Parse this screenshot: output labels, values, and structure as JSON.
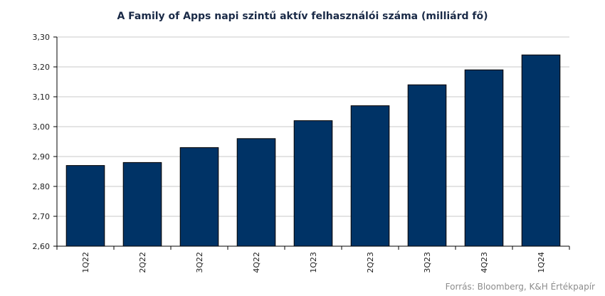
{
  "chart_data": {
    "type": "bar",
    "title": "A Family of Apps napi szintű aktív felhasználói száma (milliárd fő)",
    "categories": [
      "1Q22",
      "2Q22",
      "3Q22",
      "4Q22",
      "1Q23",
      "2Q23",
      "3Q23",
      "4Q23",
      "1Q24"
    ],
    "values": [
      2.87,
      2.88,
      2.93,
      2.96,
      3.02,
      3.07,
      3.14,
      3.19,
      3.24
    ],
    "ylim": [
      2.6,
      3.3
    ],
    "yticks": [
      "2,60",
      "2,70",
      "2,80",
      "2,90",
      "3,00",
      "3,10",
      "3,20",
      "3,30"
    ],
    "ytick_values": [
      2.6,
      2.7,
      2.8,
      2.9,
      3.0,
      3.1,
      3.2,
      3.3
    ],
    "grid": true,
    "bar_color": "#003366",
    "source": "Forrás: Bloomberg, K&H Értékpapír"
  }
}
